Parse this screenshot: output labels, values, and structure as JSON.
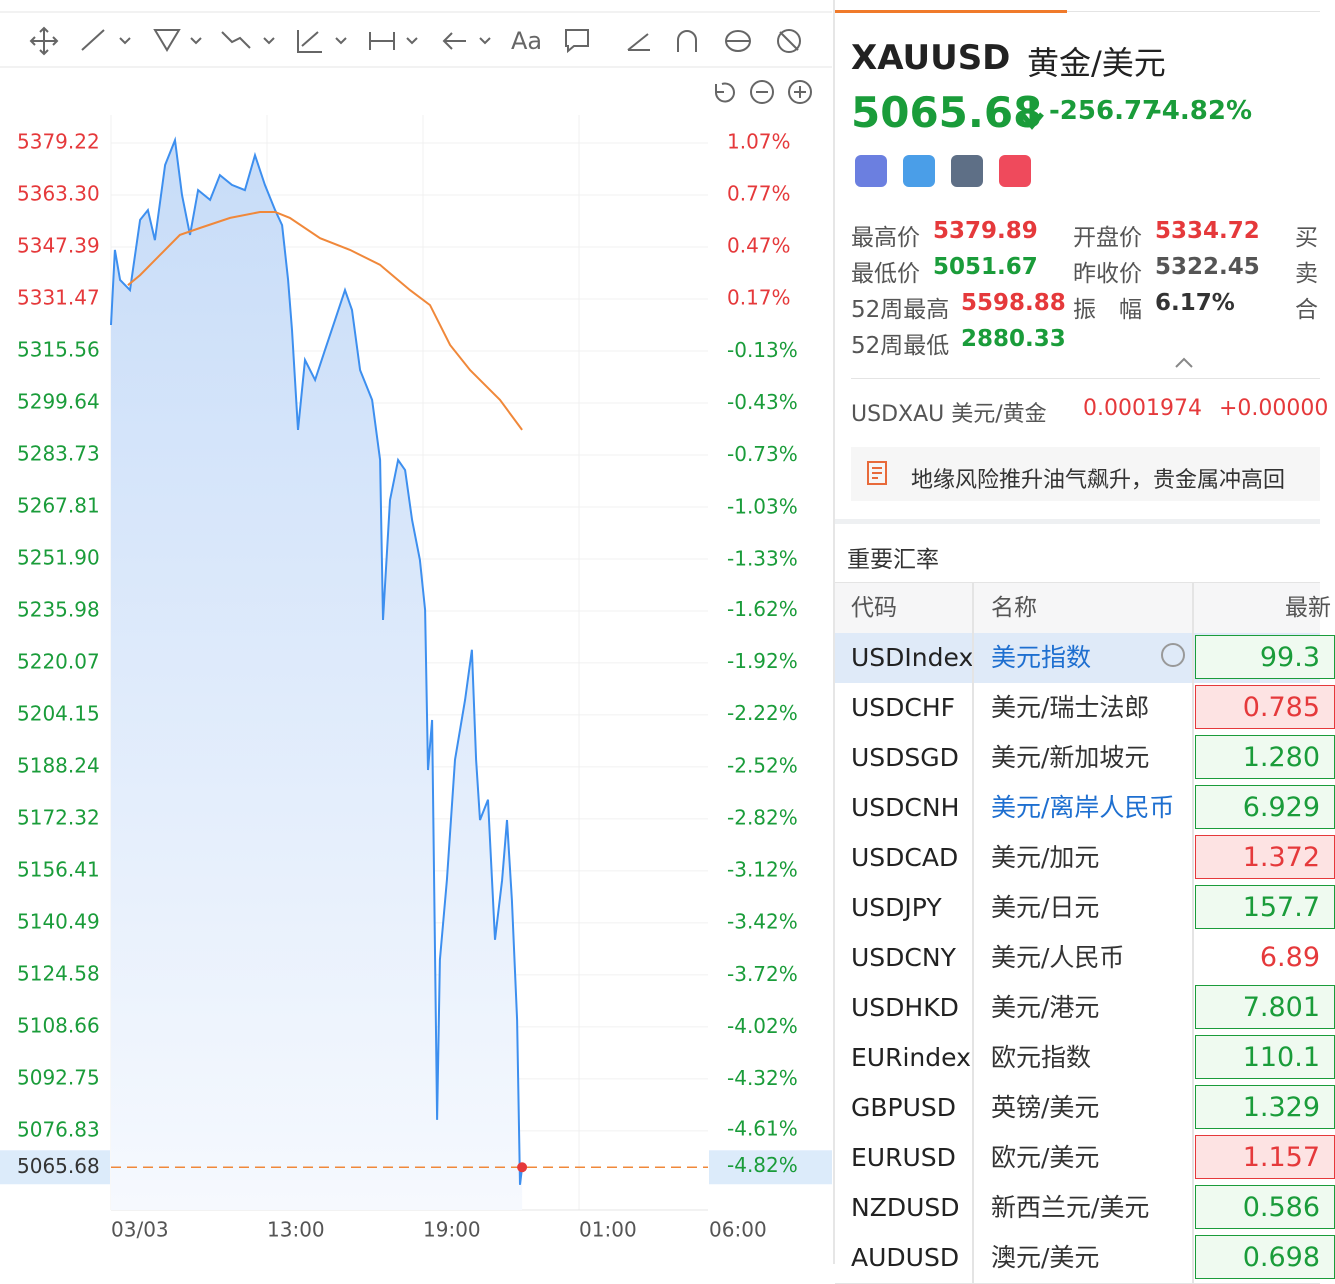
{
  "toolbar": {
    "text_tool": "Aa"
  },
  "chart_data": {
    "type": "line",
    "xlim": [
      0,
      22.96
    ],
    "xticks": [
      {
        "value": 0,
        "label": "03/03"
      },
      {
        "value": 6,
        "label": "13:00"
      },
      {
        "value": 12,
        "label": "19:00"
      },
      {
        "value": 18,
        "label": "01:00"
      },
      {
        "value": 23,
        "label": "06:00"
      }
    ],
    "ylim": [
      5052.6,
      5387.8
    ],
    "yticks": [
      5379.22,
      {
        "value": 5363.3,
        "label": "5363.30"
      },
      5347.39,
      5331.47,
      5315.56,
      5299.64,
      5283.73,
      5267.81,
      {
        "value": 5251.9,
        "label": "5251.90"
      },
      5235.98,
      5220.07,
      5204.15,
      5188.24,
      5172.32,
      5156.41,
      5140.49,
      5124.58,
      5108.66,
      5092.75,
      5076.83
    ],
    "y2lim": [
      -5.07,
      1.23
    ],
    "y2ticks": [
      {
        "value": 1.07,
        "label": "1.07%"
      },
      {
        "value": 0.77,
        "label": "0.77%"
      },
      {
        "value": 0.47,
        "label": "0.47%"
      },
      {
        "value": 0.17,
        "label": "0.17%"
      },
      {
        "value": -0.13,
        "label": "-0.13%"
      },
      {
        "value": -0.43,
        "label": "-0.43%"
      },
      {
        "value": -0.73,
        "label": "-0.73%"
      },
      {
        "value": -1.03,
        "label": "-1.03%"
      },
      {
        "value": -1.33,
        "label": "-1.33%"
      },
      {
        "value": -1.62,
        "label": "-1.62%"
      },
      {
        "value": -1.92,
        "label": "-1.92%"
      },
      {
        "value": -2.22,
        "label": "-2.22%"
      },
      {
        "value": -2.52,
        "label": "-2.52%"
      },
      {
        "value": -2.82,
        "label": "-2.82%"
      },
      {
        "value": -3.12,
        "label": "-3.12%"
      },
      {
        "value": -3.42,
        "label": "-3.42%"
      },
      {
        "value": -3.72,
        "label": "-3.72%"
      },
      {
        "value": -4.02,
        "label": "-4.02%"
      },
      {
        "value": -4.32,
        "label": "-4.32%"
      },
      {
        "value": -4.61,
        "label": "-4.61%"
      }
    ],
    "grid": true,
    "up_color": "#e5393b",
    "down_color": "#1a9c3a",
    "series": [
      {
        "color": "#3d8fef",
        "area": true,
        "x": [
          0,
          0.15,
          0.35,
          0.73,
          1.12,
          1.42,
          1.69,
          2.08,
          2.46,
          2.73,
          3.04,
          3.35,
          3.81,
          4.19,
          4.65,
          5.15,
          5.54,
          5.92,
          6.31,
          6.58,
          6.81,
          6.96,
          7.19,
          7.46,
          7.85,
          8.23,
          8.62,
          9.0,
          9.27,
          9.58,
          10.04,
          10.35,
          10.46,
          10.73,
          11.04,
          11.31,
          11.58,
          11.88,
          12.08,
          12.19,
          12.35,
          12.54,
          12.65,
          12.92,
          13.23,
          13.62,
          13.88,
          14.04,
          14.19,
          14.5,
          14.77,
          15.04,
          15.23,
          15.42,
          15.62,
          15.73,
          15.81
        ],
        "values": [
          5323.5,
          5346.5,
          5337.3,
          5334.2,
          5355.7,
          5358.7,
          5349.5,
          5372.5,
          5380.1,
          5363.3,
          5351.1,
          5364.8,
          5361.8,
          5369.4,
          5366.4,
          5364.8,
          5375.5,
          5366.4,
          5358.7,
          5354.1,
          5337.3,
          5322.0,
          5291.4,
          5312.8,
          5306.7,
          5315.9,
          5325.1,
          5334.2,
          5328.1,
          5309.7,
          5300.6,
          5282.2,
          5233.2,
          5269.9,
          5282.2,
          5279.1,
          5263.8,
          5251.6,
          5236.3,
          5187.3,
          5202.6,
          5080.2,
          5129.2,
          5153.6,
          5190.4,
          5208.8,
          5224.1,
          5190.4,
          5172.0,
          5178.2,
          5135.3,
          5153.6,
          5172.0,
          5147.5,
          5110.8,
          5060.3,
          5065.68
        ]
      },
      {
        "color": "#f0883a",
        "area": false,
        "x": [
          0.65,
          1.12,
          1.88,
          2.65,
          3.42,
          4.58,
          5.73,
          6.31,
          6.88,
          8.04,
          9.19,
          10.35,
          11.5,
          12.27,
          13.04,
          13.81,
          14.96,
          15.81
        ],
        "values": [
          5335.7,
          5338.8,
          5344.9,
          5351.1,
          5353.2,
          5356.3,
          5358.1,
          5358.1,
          5356.3,
          5350.1,
          5346.5,
          5341.9,
          5334.2,
          5329.6,
          5317.4,
          5309.7,
          5300.6,
          5291.4
        ]
      }
    ],
    "last_value": 5065.68,
    "last_value_y2": {
      "value": -4.82,
      "label": "-4.82%"
    },
    "last_color": "#f0883a"
  },
  "quote": {
    "symbol": "XAUUSD",
    "name": "黄金/美元",
    "price": "5065.68",
    "change": "-256.77",
    "change_pct": "-4.82%",
    "stats": [
      {
        "label": "最高价",
        "value": "5379.89",
        "color": "#e5393b"
      },
      {
        "label": "开盘价",
        "value": "5334.72",
        "color": "#e5393b"
      },
      {
        "label": "买",
        "value": null,
        "color": null
      },
      {
        "label": "最低价",
        "value": "5051.67",
        "color": "#1a9c3a"
      },
      {
        "label": "昨收价",
        "value": "5322.45",
        "color": "#555555"
      },
      {
        "label": "卖",
        "value": null,
        "color": null
      },
      {
        "label": "52周最高",
        "value": "5598.88",
        "color": "#e5393b"
      },
      {
        "label": "振　幅",
        "value": "6.17%",
        "color": "#333333"
      },
      {
        "label": "合",
        "value": null,
        "color": null
      },
      {
        "label": "52周最低",
        "value": "2880.33",
        "color": "#1a9c3a"
      }
    ],
    "related": {
      "label": "USDXAU 美元/黄金",
      "price": "0.0001974",
      "change": "+0.00000"
    },
    "news": "地缘风险推升油气飙升，贵金属冲高回"
  },
  "table": {
    "title": "重要汇率",
    "headers": [
      "代码",
      "名称",
      "最新"
    ],
    "rows": [
      {
        "code": "USDIndex",
        "name": "美元指数",
        "last": "99.3",
        "color": "#1a9c3a",
        "boxed": true,
        "selected": true,
        "name_color": "#1e6fd0"
      },
      {
        "code": "USDCHF",
        "name": "美元/瑞士法郎",
        "last": "0.785",
        "color": "#e5393b",
        "boxed": true,
        "selected": false,
        "name_color": "#333333"
      },
      {
        "code": "USDSGD",
        "name": "美元/新加坡元",
        "last": "1.280",
        "color": "#1a9c3a",
        "boxed": true,
        "selected": false,
        "name_color": "#333333"
      },
      {
        "code": "USDCNH",
        "name": "美元/离岸人民币",
        "last": "6.929",
        "color": "#1a9c3a",
        "boxed": true,
        "selected": false,
        "name_color": "#1e6fd0"
      },
      {
        "code": "USDCAD",
        "name": "美元/加元",
        "last": "1.372",
        "color": "#e5393b",
        "boxed": true,
        "selected": false,
        "name_color": "#333333"
      },
      {
        "code": "USDJPY",
        "name": "美元/日元",
        "last": "157.7",
        "color": "#1a9c3a",
        "boxed": true,
        "selected": false,
        "name_color": "#333333"
      },
      {
        "code": "USDCNY",
        "name": "美元/人民币",
        "last": "6.89",
        "color": "#e5393b",
        "boxed": false,
        "selected": false,
        "name_color": "#333333"
      },
      {
        "code": "USDHKD",
        "name": "美元/港元",
        "last": "7.801",
        "color": "#1a9c3a",
        "boxed": true,
        "selected": false,
        "name_color": "#333333"
      },
      {
        "code": "EURindex",
        "name": "欧元指数",
        "last": "110.1",
        "color": "#1a9c3a",
        "boxed": true,
        "selected": false,
        "name_color": "#333333"
      },
      {
        "code": "GBPUSD",
        "name": "英镑/美元",
        "last": "1.329",
        "color": "#1a9c3a",
        "boxed": true,
        "selected": false,
        "name_color": "#333333"
      },
      {
        "code": "EURUSD",
        "name": "欧元/美元",
        "last": "1.157",
        "color": "#e5393b",
        "boxed": true,
        "selected": false,
        "name_color": "#333333"
      },
      {
        "code": "NZDUSD",
        "name": "新西兰元/美元",
        "last": "0.586",
        "color": "#1a9c3a",
        "boxed": true,
        "selected": false,
        "name_color": "#333333"
      },
      {
        "code": "AUDUSD",
        "name": "澳元/美元",
        "last": "0.698",
        "color": "#1a9c3a",
        "boxed": true,
        "selected": false,
        "name_color": "#333333"
      }
    ]
  }
}
